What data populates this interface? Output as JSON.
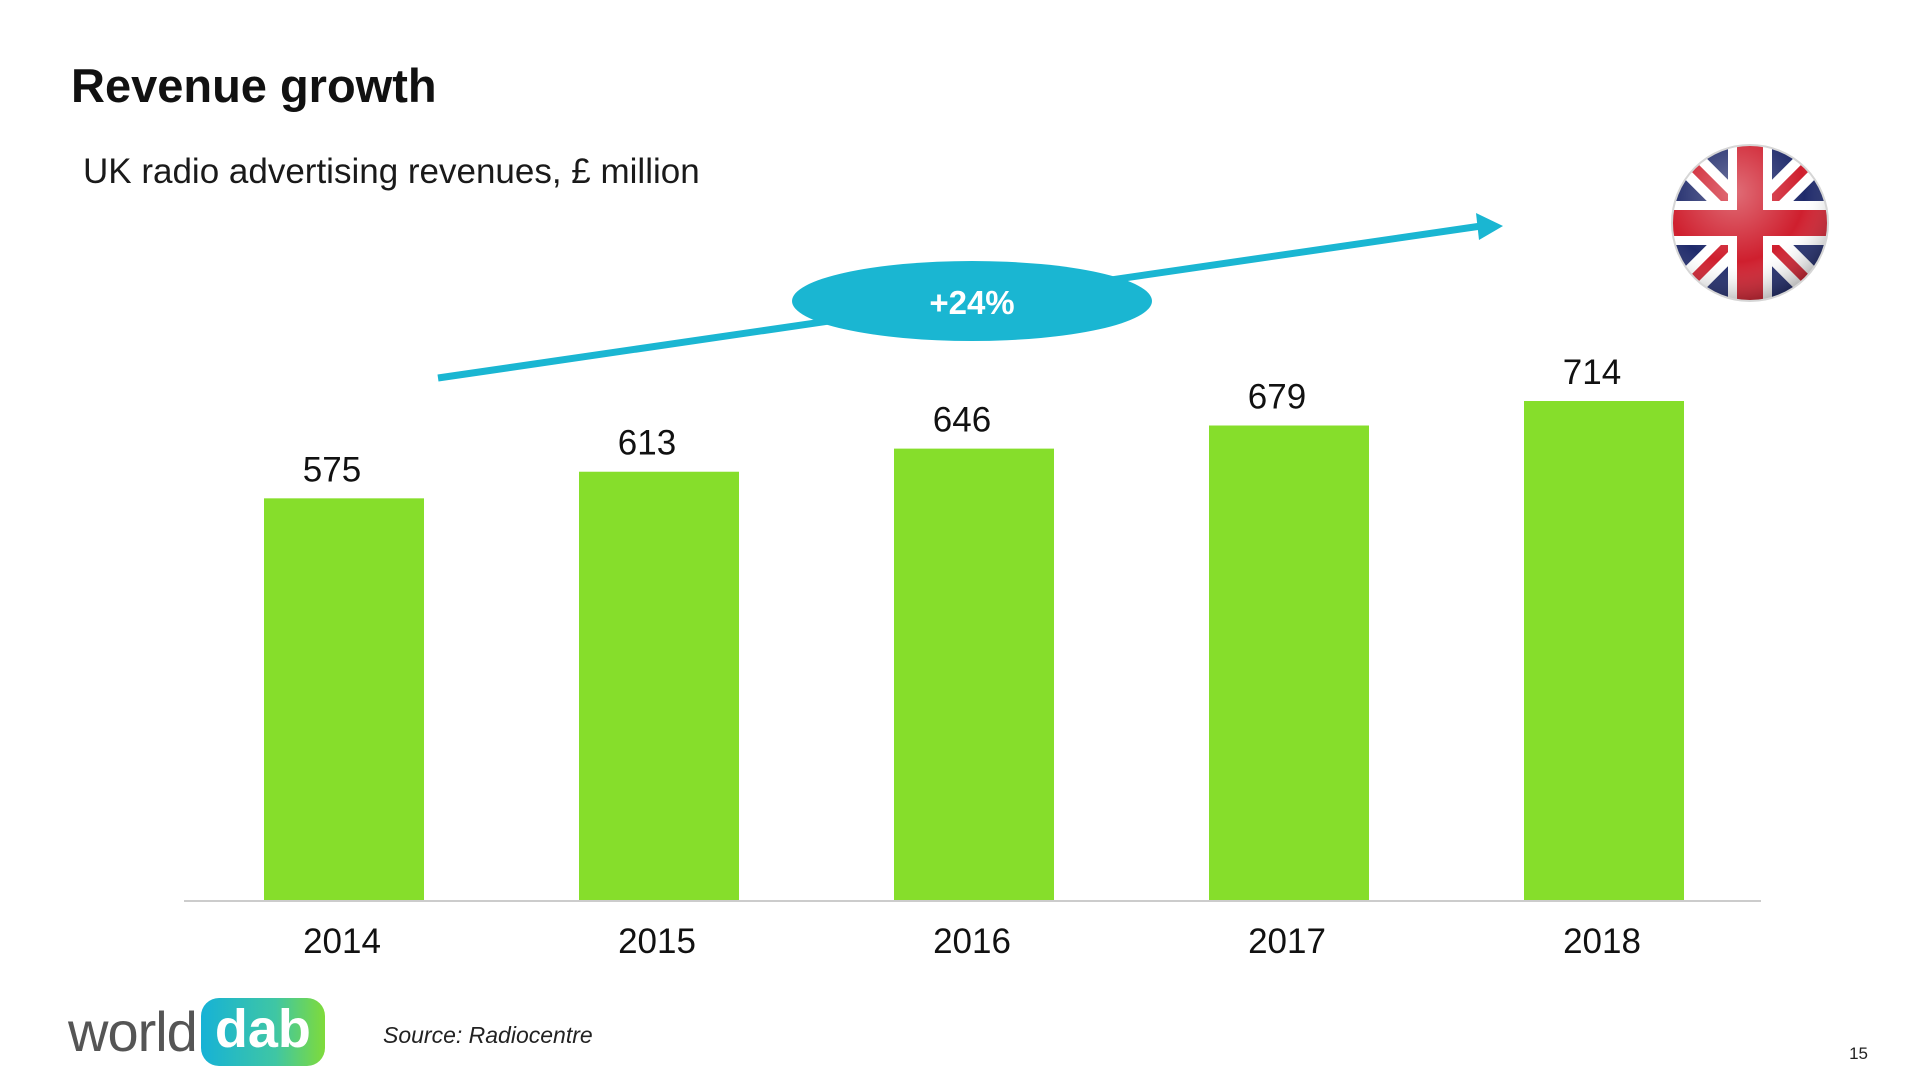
{
  "slide": {
    "title": "Revenue growth",
    "subtitle": "UK radio advertising revenues, £ million",
    "source": "Source: Radiocentre",
    "page_number": "15"
  },
  "logo": {
    "word": "world",
    "badge": "dab"
  },
  "flag_icon": "uk-flag-icon",
  "colors": {
    "bar": "#86de2b",
    "arrow": "#1ab6d2",
    "axis": "#cccccc"
  },
  "chart_data": {
    "type": "bar",
    "categories": [
      "2014",
      "2015",
      "2016",
      "2017",
      "2018"
    ],
    "values": [
      575,
      613,
      646,
      679,
      714
    ],
    "title": "",
    "xlabel": "",
    "ylabel": "",
    "annotation": {
      "label": "+24%"
    }
  }
}
